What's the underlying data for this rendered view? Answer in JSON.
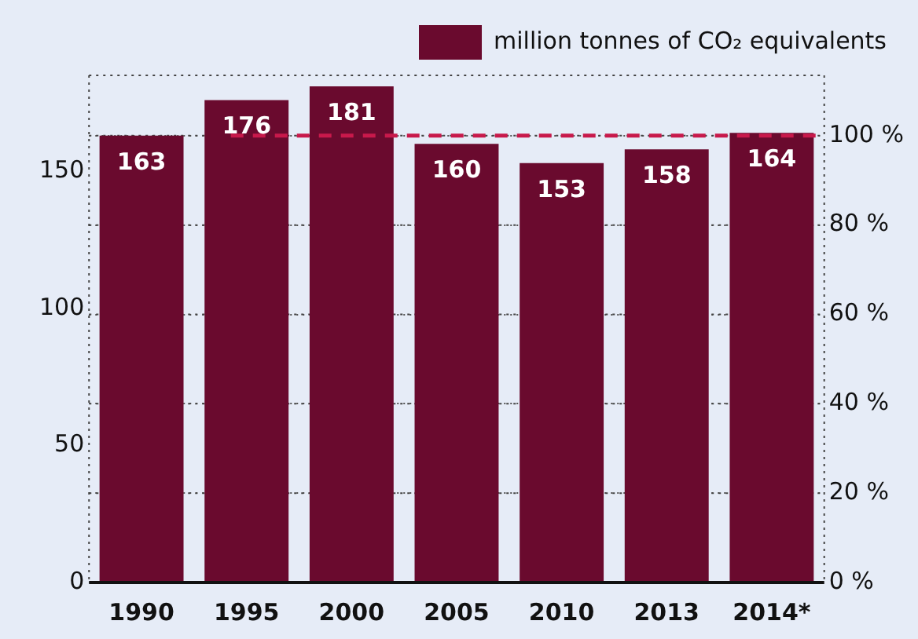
{
  "chart_data": {
    "type": "bar",
    "categories": [
      "1990",
      "1995",
      "2000",
      "2005",
      "2010",
      "2013",
      "2014*"
    ],
    "series": [
      {
        "name": "million tonnes of CO₂ equivalents",
        "color": "#6a0a2e",
        "values": [
          163,
          176,
          181,
          160,
          153,
          158,
          164
        ]
      }
    ],
    "ylim": [
      0,
      185
    ],
    "yticks": [
      0,
      50,
      100,
      150
    ],
    "y2lim": [
      0,
      113.5
    ],
    "y2ticks": [
      {
        "value": 0,
        "label": "0 %"
      },
      {
        "value": 20,
        "label": "20 %"
      },
      {
        "value": 40,
        "label": "40 %"
      },
      {
        "value": 60,
        "label": "60 %"
      },
      {
        "value": 80,
        "label": "80 %"
      },
      {
        "value": 100,
        "label": "100 %"
      }
    ],
    "ref_lines": [
      {
        "axis": "y2",
        "value": 100,
        "color": "#c8194b",
        "line_style": "dashed"
      }
    ],
    "grid": "y2",
    "legend": "top right",
    "data_labels": true
  }
}
